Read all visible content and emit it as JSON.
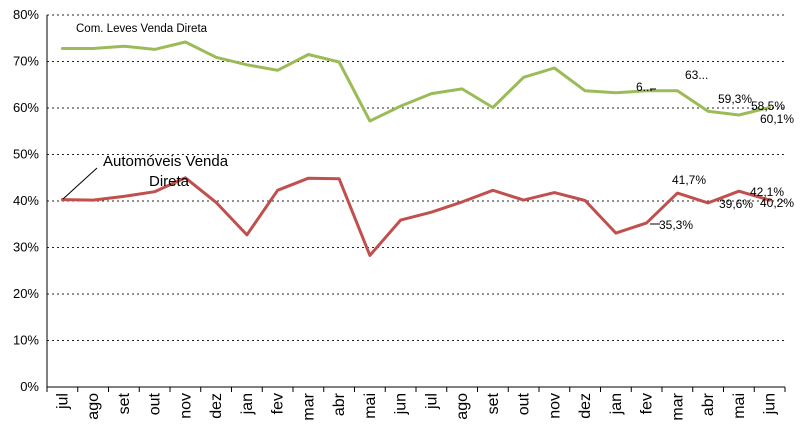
{
  "colors": {
    "com_leves": "#9bbb59",
    "automoveis": "#c0504d",
    "grid": "#000000",
    "text": "#000000"
  },
  "chart_data": {
    "type": "line",
    "categories": [
      "jul",
      "ago",
      "set",
      "out",
      "nov",
      "dez",
      "jan",
      "fev",
      "mar",
      "abr",
      "mai",
      "jun",
      "jul",
      "ago",
      "set",
      "out",
      "nov",
      "dez",
      "jan",
      "fev",
      "mar",
      "abr",
      "mai",
      "jun"
    ],
    "ylim": [
      0,
      80
    ],
    "yticks": [
      "0%",
      "10%",
      "20%",
      "30%",
      "40%",
      "50%",
      "60%",
      "70%",
      "80%"
    ],
    "grid": true,
    "series": [
      {
        "name": "Com. Leves Venda Direta",
        "values": [
          72.8,
          72.8,
          73.3,
          72.6,
          74.2,
          70.9,
          69.3,
          68.1,
          71.5,
          69.9,
          57.2,
          60.4,
          63.1,
          64.1,
          60.1,
          66.6,
          68.6,
          63.7,
          63.3,
          63.7,
          63.7,
          59.3,
          58.5,
          60.1
        ],
        "data_labels": [
          {
            "index": 19,
            "text": "6..."
          },
          {
            "index": 20,
            "text": "63..."
          },
          {
            "index": 21,
            "text": "59,3%"
          },
          {
            "index": 22,
            "text": "58,5%"
          },
          {
            "index": 23,
            "text": "60,1%"
          }
        ]
      },
      {
        "name": "Automóveis Venda Direta",
        "name_lines": [
          "Automóveis Venda",
          "Direta"
        ],
        "values": [
          40.3,
          40.2,
          41.0,
          42.0,
          45.0,
          39.7,
          32.7,
          42.3,
          44.9,
          44.8,
          28.3,
          35.9,
          37.6,
          39.8,
          42.3,
          40.2,
          41.8,
          40.1,
          33.1,
          35.3,
          41.7,
          39.6,
          42.1,
          40.2
        ],
        "data_labels": [
          {
            "index": 19,
            "text": "35,3%"
          },
          {
            "index": 20,
            "text": "41,7%"
          },
          {
            "index": 21,
            "text": "39,6%"
          },
          {
            "index": 22,
            "text": "42,1%"
          },
          {
            "index": 23,
            "text": "40,2%"
          }
        ]
      }
    ]
  }
}
